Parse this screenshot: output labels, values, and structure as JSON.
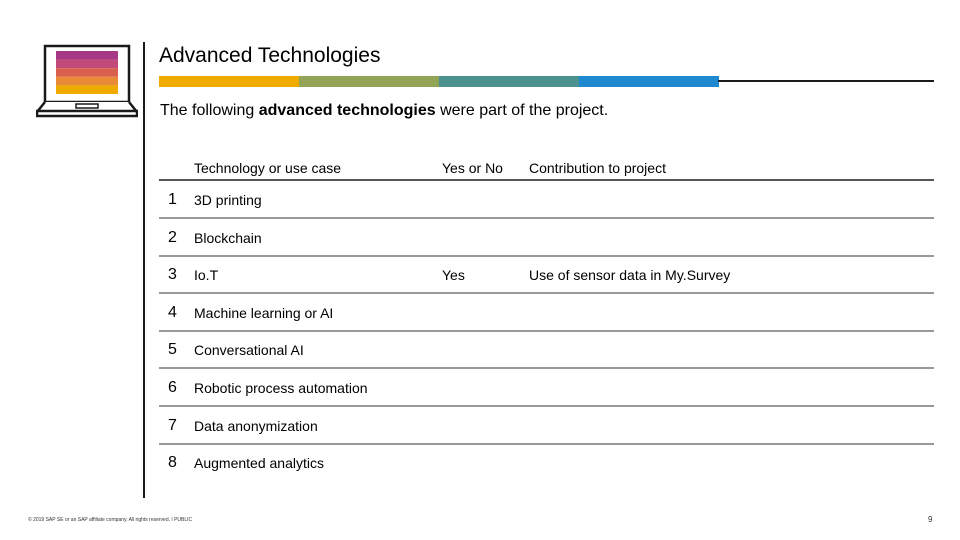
{
  "slide": {
    "title": "Advanced Technologies",
    "subtitle_pre": "The following ",
    "subtitle_bold": "advanced technologies",
    "subtitle_post": " were part of the project.",
    "footer": "© 2019 SAP SE or an SAP affiliate company. All rights reserved. ǀ PUBLIC",
    "page_number": "9"
  },
  "colors": {
    "bar": [
      "#f0ab00",
      "#93a457",
      "#4a9190",
      "#1e88d0"
    ],
    "laptop_stripes": [
      "#a63886",
      "#c24a7a",
      "#d9604f",
      "#e98a37",
      "#f0ab00"
    ]
  },
  "icons": {
    "illustration": "laptop-icon"
  },
  "table": {
    "headers": {
      "technology": "Technology or use case",
      "yes_no": "Yes or No",
      "contribution": "Contribution to project"
    },
    "rows": [
      {
        "num": "1",
        "technology": "3D printing",
        "yes_no": "",
        "contribution": ""
      },
      {
        "num": "2",
        "technology": "Blockchain",
        "yes_no": "",
        "contribution": ""
      },
      {
        "num": "3",
        "technology": "Io.T",
        "yes_no": "Yes",
        "contribution": "Use of sensor data in My.Survey"
      },
      {
        "num": "4",
        "technology": "Machine learning or AI",
        "yes_no": "",
        "contribution": ""
      },
      {
        "num": "5",
        "technology": "Conversational AI",
        "yes_no": "",
        "contribution": ""
      },
      {
        "num": "6",
        "technology": "Robotic process automation",
        "yes_no": "",
        "contribution": ""
      },
      {
        "num": "7",
        "technology": "Data anonymization",
        "yes_no": "",
        "contribution": ""
      },
      {
        "num": "8",
        "technology": "Augmented analytics",
        "yes_no": "",
        "contribution": ""
      }
    ]
  }
}
